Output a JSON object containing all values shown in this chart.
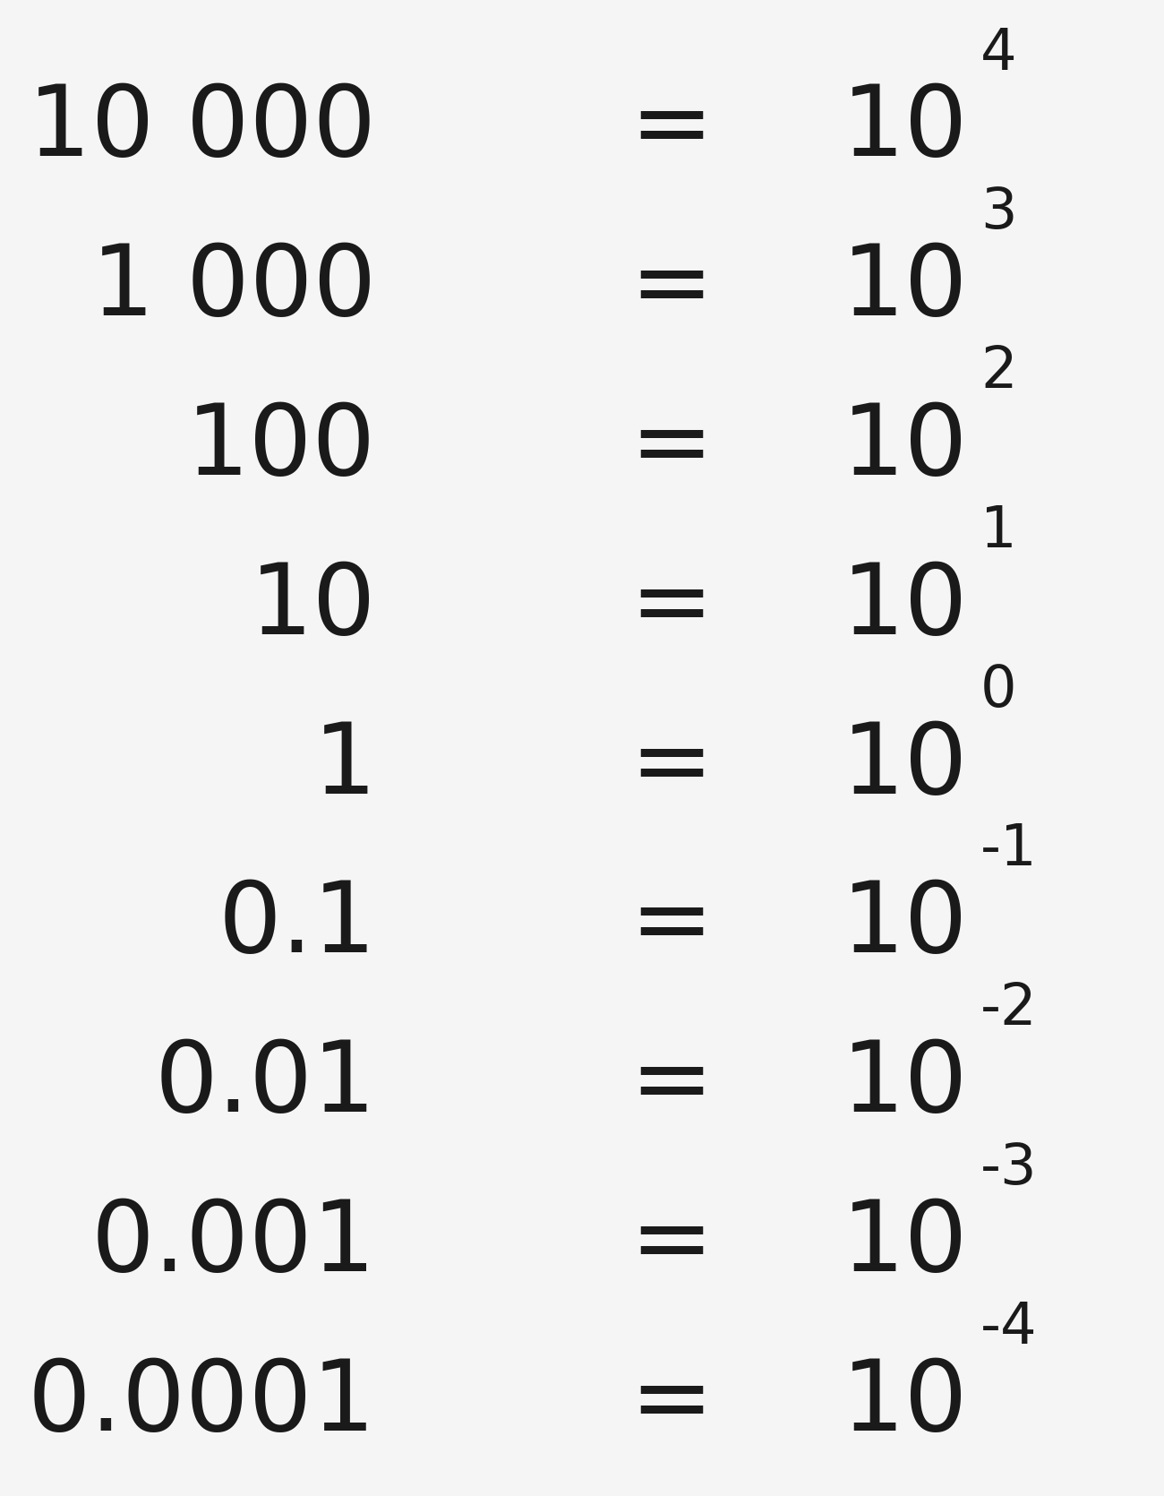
{
  "background_color": "#f5f5f5",
  "rows": [
    {
      "left": "10 000",
      "exponent": "4"
    },
    {
      "left": "1 000",
      "exponent": "3"
    },
    {
      "left": "100",
      "exponent": "2"
    },
    {
      "left": "10",
      "exponent": "1"
    },
    {
      "left": "1",
      "exponent": "0"
    },
    {
      "left": "0.1",
      "exponent": "-1"
    },
    {
      "left": "0.01",
      "exponent": "-2"
    },
    {
      "left": "0.001",
      "exponent": "-3"
    },
    {
      "left": "0.0001",
      "exponent": "-4"
    }
  ],
  "text_color": "#1a1a1a",
  "main_fontsize": 80,
  "exp_fontsize": 46,
  "figwidth": 13.0,
  "figheight": 16.7,
  "dpi": 100
}
